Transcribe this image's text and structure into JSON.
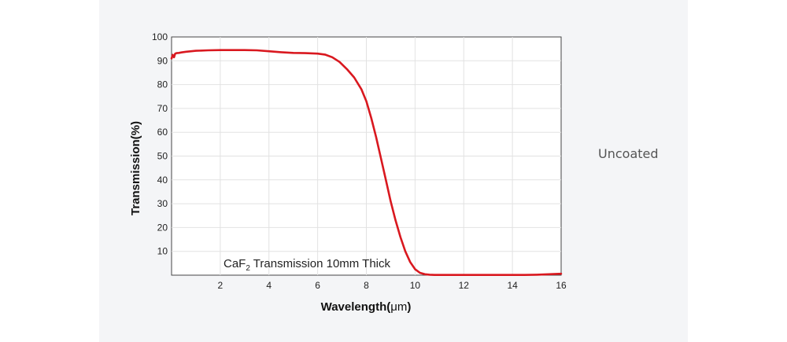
{
  "side_label": "Uncoated",
  "chart_data": {
    "type": "line",
    "annotation": {
      "main": "CaF",
      "sub": "2",
      "rest": " Transmission 10mm Thick"
    },
    "xlabel_main": "Wavelength(",
    "xlabel_unit": "μm",
    "xlabel_end": ")",
    "ylabel": "Transmission(%)",
    "xlim": [
      0,
      16
    ],
    "ylim": [
      0,
      100
    ],
    "x_ticks": [
      2,
      4,
      6,
      8,
      10,
      12,
      14,
      16
    ],
    "y_ticks": [
      10,
      20,
      30,
      40,
      50,
      60,
      70,
      80,
      90,
      100
    ],
    "grid": true,
    "series": [
      {
        "color": "#d9181f",
        "x": [
          0.0,
          0.05,
          0.1,
          0.15,
          0.2,
          0.3,
          0.4,
          0.6,
          0.8,
          1.0,
          1.5,
          2.0,
          2.5,
          3.0,
          3.5,
          4.0,
          4.5,
          5.0,
          5.5,
          6.0,
          6.3,
          6.6,
          6.9,
          7.2,
          7.5,
          7.8,
          8.0,
          8.2,
          8.4,
          8.6,
          8.8,
          9.0,
          9.2,
          9.4,
          9.6,
          9.8,
          10.0,
          10.2,
          10.4,
          10.6,
          10.8,
          11.0,
          11.5,
          12.0,
          12.5,
          13.0,
          13.5,
          14.0,
          14.5,
          15.0,
          15.5,
          16.0
        ],
        "y": [
          91.0,
          92.5,
          91.5,
          93.0,
          93.2,
          93.3,
          93.5,
          93.8,
          94.0,
          94.2,
          94.4,
          94.5,
          94.5,
          94.5,
          94.4,
          94.0,
          93.6,
          93.3,
          93.2,
          93.0,
          92.6,
          91.5,
          89.5,
          86.5,
          83.0,
          78.0,
          73.0,
          66.0,
          58.0,
          49.0,
          40.0,
          31.0,
          23.0,
          16.0,
          10.0,
          5.5,
          2.5,
          1.0,
          0.4,
          0.2,
          0.1,
          0.1,
          0.1,
          0.1,
          0.1,
          0.1,
          0.1,
          0.1,
          0.1,
          0.2,
          0.4,
          0.6
        ]
      }
    ]
  }
}
